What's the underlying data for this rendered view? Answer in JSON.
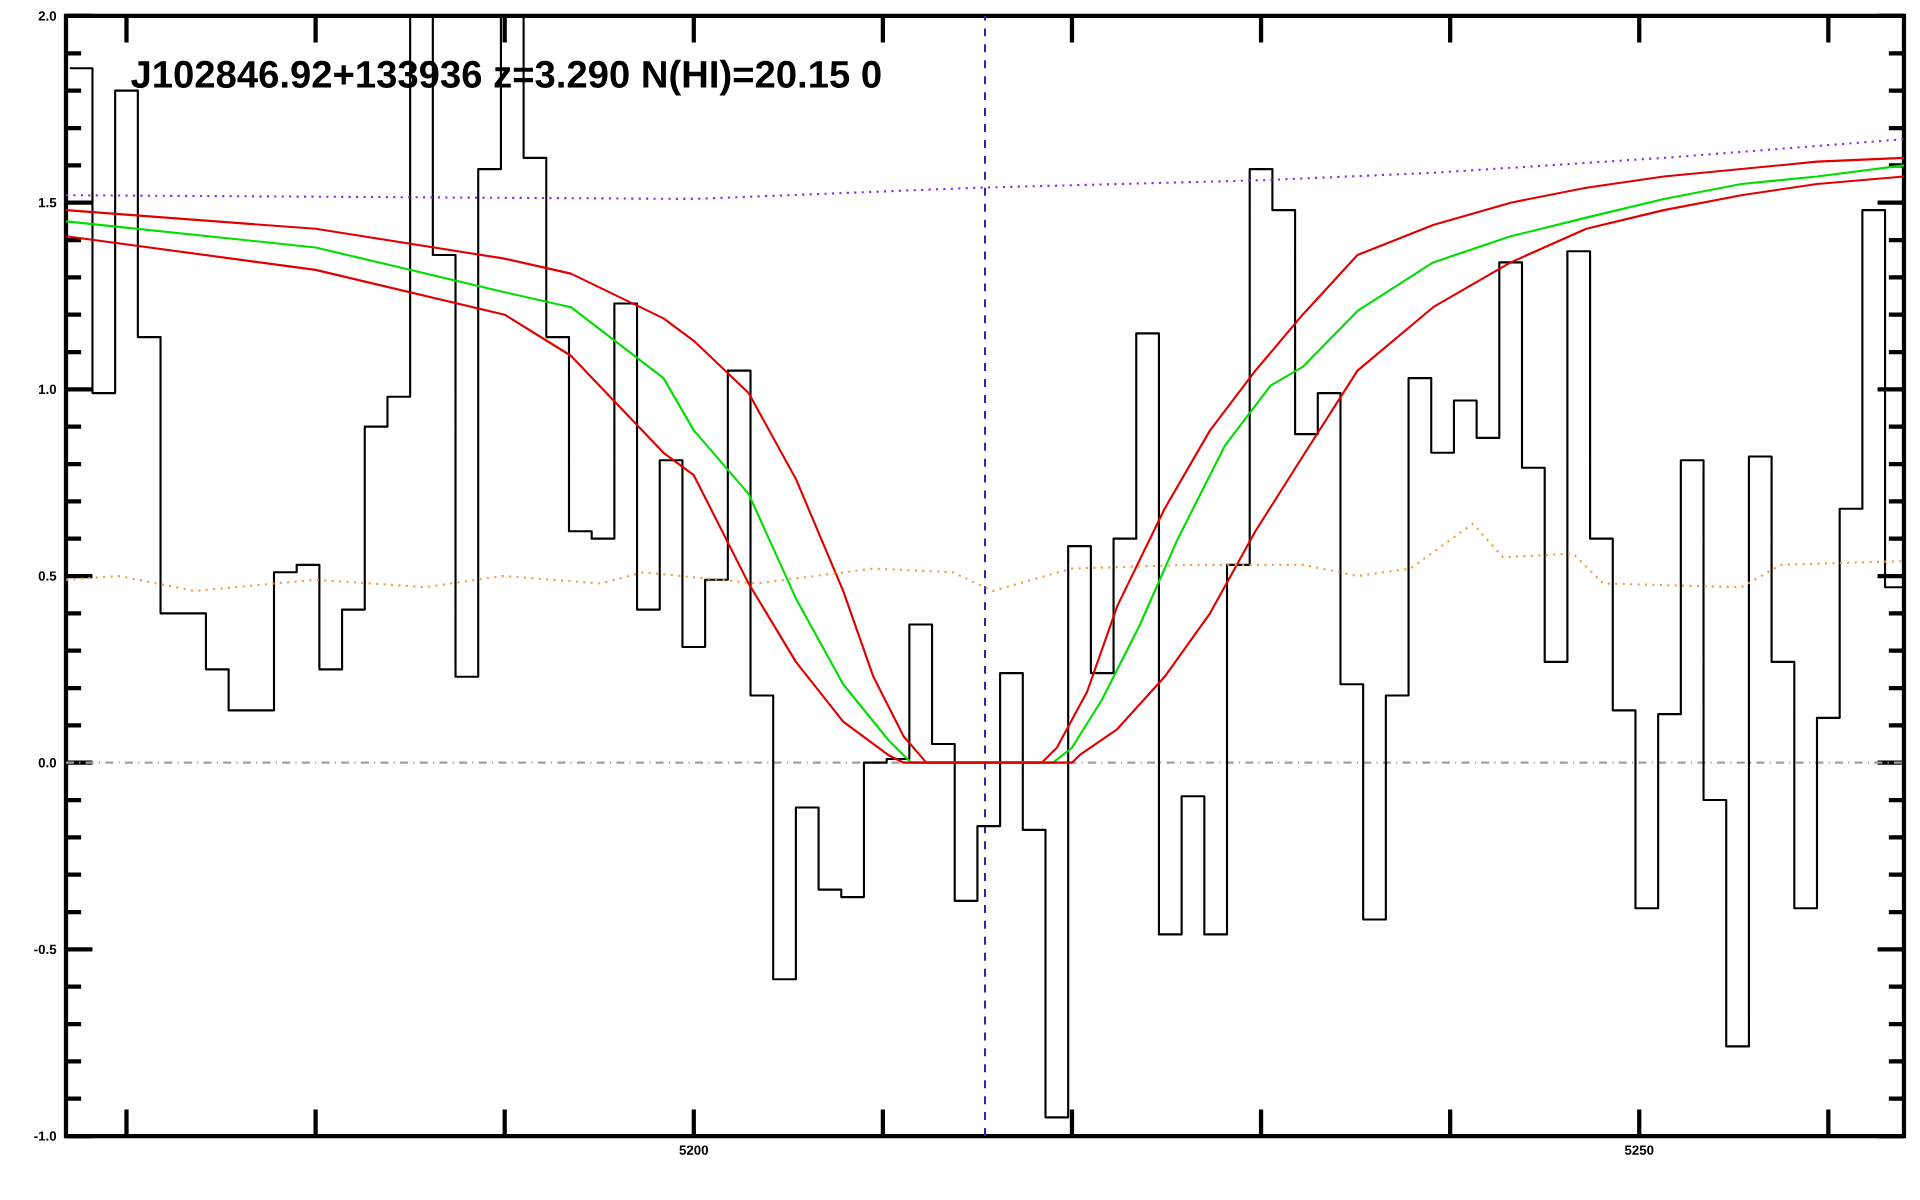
{
  "chart_data": {
    "type": "line",
    "title": "J102846.92+133936 z=3.290 N(HI)=20.15 0",
    "xlim": [
      5166.8,
      5264.0
    ],
    "ylim": [
      -1.0,
      2.0
    ],
    "xticks": [
      {
        "value": 5170,
        "label": null
      },
      {
        "value": 5180,
        "label": null
      },
      {
        "value": 5190,
        "label": null
      },
      5200,
      {
        "value": 5210,
        "label": null
      },
      {
        "value": 5220,
        "label": null
      },
      {
        "value": 5230,
        "label": null
      },
      {
        "value": 5240,
        "label": null
      },
      5250,
      {
        "value": 5260,
        "label": null
      }
    ],
    "yticks": [
      {
        "value": -1,
        "label": "-1.0"
      },
      {
        "value": -0.5,
        "label": "-0.5"
      },
      {
        "value": 0,
        "label": "0.0"
      },
      {
        "value": 0.5,
        "label": "0.5"
      },
      {
        "value": 1,
        "label": "1.0"
      },
      {
        "value": 1.5,
        "label": "1.5"
      },
      {
        "value": 2,
        "label": "2.0"
      }
    ],
    "grid": false,
    "marker": "none",
    "ref_lines": [
      {
        "axis": "y",
        "value": 0,
        "color": "#a0a0a0",
        "line_style": "dashdot"
      },
      {
        "axis": "x",
        "value": 5215.4,
        "color": "#2a2aa8",
        "line_style": "dashed"
      }
    ],
    "series": [
      {
        "type": "step",
        "color": "#000000",
        "line_style": "solid",
        "x": [
          5167.0,
          5168.2,
          5169.4,
          5170.6,
          5171.8,
          5173.0,
          5174.2,
          5175.4,
          5176.6,
          5177.8,
          5179.0,
          5180.2,
          5181.4,
          5182.6,
          5183.8,
          5185.0,
          5186.2,
          5187.4,
          5188.6,
          5189.8,
          5191.0,
          5192.2,
          5193.4,
          5194.6,
          5195.8,
          5197.0,
          5198.2,
          5199.4,
          5200.6,
          5201.8,
          5203.0,
          5204.2,
          5205.4,
          5206.6,
          5207.8,
          5209.0,
          5210.2,
          5211.4,
          5212.6,
          5213.8,
          5215.0,
          5216.2,
          5217.4,
          5218.6,
          5219.8,
          5221.0,
          5222.2,
          5223.4,
          5224.6,
          5225.8,
          5227.0,
          5228.2,
          5229.4,
          5230.6,
          5231.8,
          5233.0,
          5234.2,
          5235.4,
          5236.6,
          5237.8,
          5239.0,
          5240.2,
          5241.4,
          5242.6,
          5243.8,
          5245.0,
          5246.2,
          5247.4,
          5248.6,
          5249.8,
          5251.0,
          5252.2,
          5253.4,
          5254.6,
          5255.8,
          5257.0,
          5258.2,
          5259.4,
          5260.6,
          5261.8,
          5263.0,
          5264.0
        ],
        "values": [
          1.86,
          0.99,
          1.8,
          1.14,
          0.4,
          0.4,
          0.25,
          0.14,
          0.14,
          0.51,
          0.53,
          0.25,
          0.41,
          0.9,
          0.98,
          2.0,
          1.36,
          0.23,
          1.59,
          2.0,
          1.62,
          1.14,
          0.62,
          0.6,
          1.23,
          0.41,
          0.81,
          0.31,
          0.49,
          1.05,
          0.18,
          -0.58,
          -0.12,
          -0.34,
          -0.36,
          0.0,
          0.01,
          0.37,
          0.05,
          -0.37,
          -0.17,
          0.24,
          -0.18,
          -0.95,
          0.58,
          0.24,
          0.6,
          1.15,
          -0.46,
          -0.09,
          -0.46,
          0.53,
          1.59,
          1.48,
          0.88,
          0.99,
          0.21,
          -0.42,
          0.18,
          1.03,
          0.83,
          0.97,
          0.87,
          1.34,
          0.79,
          0.27,
          1.37,
          0.6,
          0.14,
          -0.39,
          0.13,
          0.81,
          -0.1,
          -0.76,
          0.82,
          0.27,
          -0.39,
          0.12,
          0.68,
          1.48,
          0.47,
          0.47
        ]
      },
      {
        "color": "#e00000",
        "line_style": "solid",
        "x": [
          5166.8,
          5180,
          5190,
          5193.5,
          5198.4,
          5200,
          5202.9,
          5205.4,
          5207.9,
          5209.5,
          5211.1,
          5212.3,
          5218.4,
          5219.2,
          5220.8,
          5222.4,
          5224.9,
          5227.3,
          5229.7,
          5232.2,
          5235.1,
          5239.1,
          5243.2,
          5247.2,
          5251.3,
          5255.4,
          5259.4,
          5264.0
        ],
        "values": [
          1.48,
          1.43,
          1.35,
          1.31,
          1.19,
          1.13,
          0.99,
          0.76,
          0.46,
          0.23,
          0.07,
          0.0,
          0.0,
          0.04,
          0.19,
          0.42,
          0.68,
          0.89,
          1.05,
          1.2,
          1.36,
          1.44,
          1.5,
          1.54,
          1.57,
          1.59,
          1.61,
          1.62
        ]
      },
      {
        "color": "#00dd00",
        "line_style": "solid",
        "x": [
          5166.8,
          5180,
          5190,
          5193.5,
          5198.4,
          5200,
          5202.9,
          5205.4,
          5207.9,
          5210.3,
          5211.5,
          5219.0,
          5220.0,
          5221.6,
          5223.6,
          5225.6,
          5228.1,
          5230.5,
          5232.2,
          5235.1,
          5239.1,
          5243.2,
          5247.2,
          5251.3,
          5255.4,
          5259.4,
          5264.0
        ],
        "values": [
          1.45,
          1.38,
          1.26,
          1.22,
          1.03,
          0.89,
          0.72,
          0.44,
          0.21,
          0.06,
          0.0,
          0.0,
          0.04,
          0.17,
          0.37,
          0.6,
          0.85,
          1.01,
          1.06,
          1.21,
          1.34,
          1.41,
          1.46,
          1.51,
          1.55,
          1.57,
          1.6
        ]
      },
      {
        "color": "#e00000",
        "line_style": "solid",
        "x": [
          5166.8,
          5180,
          5190,
          5193.5,
          5198.4,
          5200,
          5202.9,
          5205.4,
          5207.9,
          5210.3,
          5211.1,
          5220.0,
          5220.4,
          5222.4,
          5224.9,
          5227.3,
          5229.7,
          5232.2,
          5235.1,
          5239.1,
          5243.2,
          5247.2,
          5251.3,
          5255.4,
          5259.4,
          5264.0
        ],
        "values": [
          1.41,
          1.32,
          1.2,
          1.09,
          0.83,
          0.77,
          0.48,
          0.27,
          0.11,
          0.02,
          0.0,
          0.0,
          0.02,
          0.09,
          0.23,
          0.4,
          0.62,
          0.82,
          1.05,
          1.22,
          1.34,
          1.43,
          1.48,
          1.52,
          1.55,
          1.57
        ]
      },
      {
        "color": "#8a2be2",
        "line_style": "dotted",
        "x": [
          5166.8,
          5200,
          5215,
          5230,
          5239.1,
          5251.3,
          5264.0
        ],
        "values": [
          1.52,
          1.51,
          1.54,
          1.56,
          1.58,
          1.62,
          1.67
        ]
      },
      {
        "color": "#f0a040",
        "line_style": "dotted",
        "x": [
          5166.8,
          5169.6,
          5173.6,
          5180,
          5185.8,
          5189.9,
          5195.1,
          5197.3,
          5203.3,
          5209.5,
          5213.7,
          5215.8,
          5220,
          5226.3,
          5232.2,
          5235.1,
          5237.9,
          5241.2,
          5242.8,
          5246.5,
          5248.1,
          5255.4,
          5257.5,
          5264.0
        ],
        "values": [
          0.49,
          0.5,
          0.46,
          0.49,
          0.47,
          0.5,
          0.48,
          0.51,
          0.48,
          0.52,
          0.51,
          0.46,
          0.52,
          0.53,
          0.53,
          0.5,
          0.52,
          0.64,
          0.55,
          0.56,
          0.48,
          0.47,
          0.53,
          0.54
        ]
      }
    ]
  }
}
